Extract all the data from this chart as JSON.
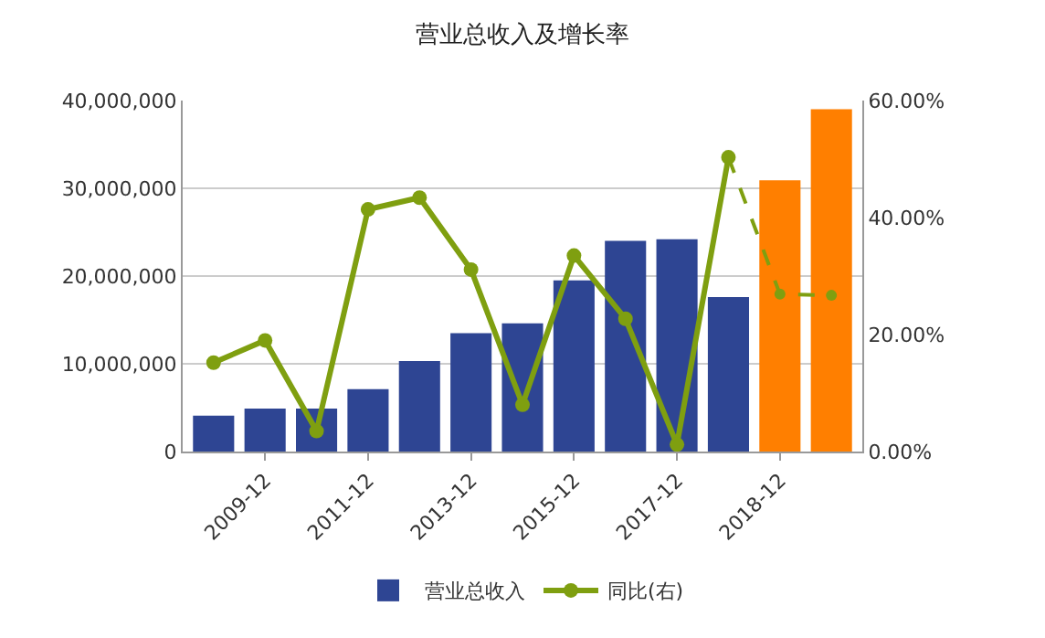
{
  "chart_data": {
    "type": "bar",
    "title": "营业总收入及增长率",
    "categories": [
      null,
      "2009-12",
      null,
      "2011-12",
      null,
      "2013-12",
      null,
      "2015-12",
      null,
      "2017-12",
      null,
      "2018-12",
      null
    ],
    "series": [
      {
        "name": "营业总收入",
        "color": "#2e4593",
        "colors": [
          null,
          null,
          null,
          null,
          null,
          null,
          null,
          null,
          null,
          null,
          null,
          "#ff7f00",
          "#ff7f00"
        ],
        "values": [
          4100000,
          4900000,
          4900000,
          7100000,
          10300000,
          13500000,
          14600000,
          19500000,
          24000000,
          24200000,
          17600000,
          30900000,
          39000000
        ]
      },
      {
        "type": "line",
        "name": "同比(右)",
        "axis": "y2",
        "color": "#7f9f10",
        "marker": "circle",
        "line_style": "solid",
        "values": [
          15.2,
          19.0,
          3.5,
          41.4,
          43.4,
          31.1,
          8.0,
          33.5,
          22.7,
          1.2,
          50.3,
          null,
          null
        ]
      },
      {
        "type": "line",
        "axis": "y2",
        "color": "#7f9f10",
        "marker": "circle",
        "line_style": "dashed",
        "values": [
          null,
          null,
          null,
          null,
          null,
          null,
          null,
          null,
          null,
          null,
          50.3,
          26.9,
          26.7
        ]
      }
    ],
    "ylim": [
      0,
      40000000
    ],
    "yticks": [
      {
        "value": 0,
        "label": "0"
      },
      {
        "value": 10000000,
        "label": "10,000,000"
      },
      {
        "value": 20000000,
        "label": "20,000,000"
      },
      {
        "value": 30000000,
        "label": "30,000,000"
      },
      {
        "value": 40000000,
        "label": "40,000,000"
      }
    ],
    "y2lim": [
      0,
      60
    ],
    "y2ticks": [
      {
        "value": 0,
        "label": "0.00%"
      },
      {
        "value": 20,
        "label": "20.00%"
      },
      {
        "value": 40,
        "label": "40.00%"
      },
      {
        "value": 60,
        "label": "60.00%"
      }
    ],
    "grid": "y",
    "legend": "bottom"
  }
}
